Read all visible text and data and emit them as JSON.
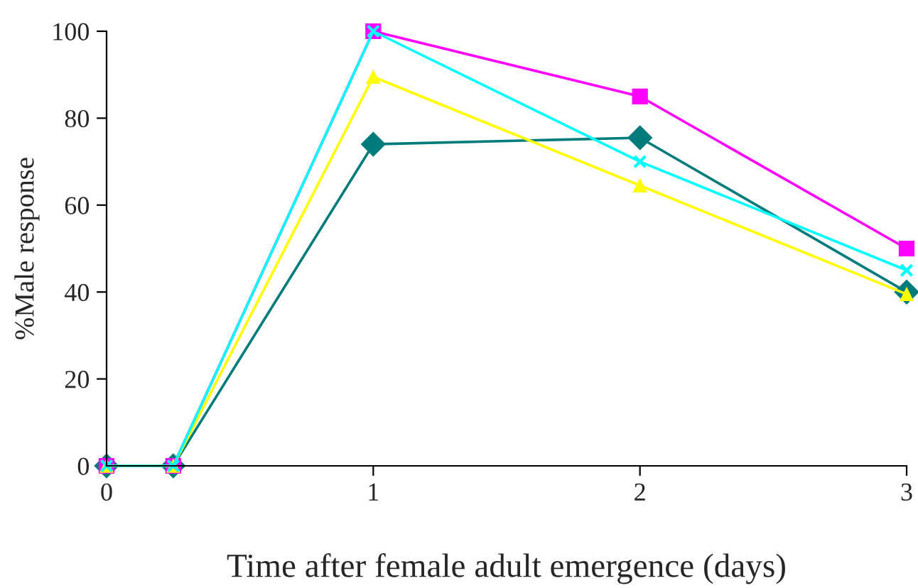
{
  "chart_data": {
    "type": "line",
    "xlabel": "Time after female adult emergence (days)",
    "ylabel": "%Male response",
    "x": [
      0,
      0.25,
      1,
      2,
      3
    ],
    "series": [
      {
        "color": "#007b7b",
        "marker": "diamond",
        "values": [
          0,
          0,
          74,
          75.5,
          40
        ]
      },
      {
        "color": "#ff00ff",
        "marker": "square",
        "values": [
          0,
          0,
          100,
          85,
          50
        ]
      },
      {
        "color": "#ffff00",
        "marker": "triangle",
        "values": [
          0,
          0,
          89.5,
          64.5,
          39.5
        ]
      },
      {
        "color": "#00ffff",
        "marker": "cross",
        "values": [
          0,
          0,
          100,
          70,
          45
        ]
      }
    ],
    "xlim": [
      0,
      3
    ],
    "xticks": [
      0,
      1,
      2,
      3
    ],
    "ylim": [
      0,
      100
    ],
    "yticks": [
      0,
      20,
      40,
      60,
      80,
      100
    ],
    "grid": false,
    "legend": false,
    "line_style": "solid"
  }
}
